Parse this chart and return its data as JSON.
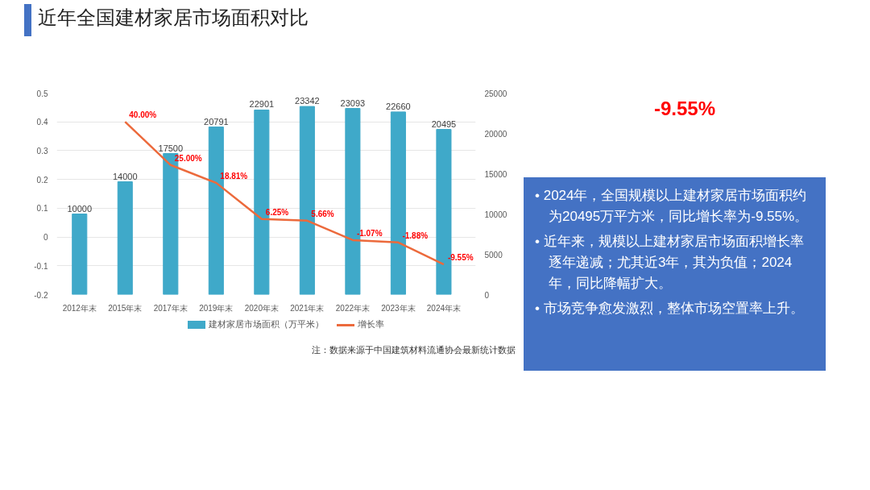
{
  "chart_data": [
    {
      "type": "bar",
      "title": "近年全国建材家居市场面积对比",
      "categories": [
        "2012年末",
        "2015年末",
        "2017年末",
        "2019年末",
        "2020年末",
        "2021年末",
        "2022年末",
        "2023年末",
        "2024年末"
      ],
      "series": [
        {
          "name": "建材家居市场面积（万平米）",
          "type": "bar",
          "axis": "y2",
          "color": "#3fa9c9",
          "values": [
            10000,
            14000,
            17500,
            20791,
            22901,
            23342,
            23093,
            22660,
            20495
          ]
        },
        {
          "name": "增长率",
          "type": "line",
          "color": "#ec6a3c",
          "values": [
            null,
            0.4,
            0.25,
            0.1881,
            0.0625,
            0.0566,
            -0.0107,
            -0.0188,
            -0.0955
          ],
          "value_labels": [
            null,
            "40.00%",
            "25.00%",
            "18.81%",
            "6.25%",
            "5.66%",
            "-1.07%",
            "-1.88%",
            "-9.55%"
          ]
        }
      ],
      "data_labels": true,
      "ylim": [
        -0.2,
        0.5
      ],
      "yticks": [
        -0.2,
        -0.1,
        0,
        0.1,
        0.2,
        0.3,
        0.4,
        0.5
      ],
      "y2lim": [
        0,
        25000
      ],
      "y2ticks": [
        0,
        5000,
        10000,
        15000,
        20000,
        25000
      ],
      "grid": "y",
      "legend": "bottom",
      "annotations": [
        "注：数据来源于中国建筑材料流通协会最新统计数据"
      ]
    },
    {
      "type": "other",
      "annotations": [
        "-9.55%",
        "• 2024年，全国规模以上建材家居市场面积约为20495万平方米，同比增长率为-9.55%。",
        "• 近年来，规模以上建材家居市场面积增长率逐年递减；尤其近3年，其为负值；2024年，同比降幅扩大。",
        "• 市场竞争愈发激烈，整体市场空置率上升。"
      ]
    }
  ]
}
